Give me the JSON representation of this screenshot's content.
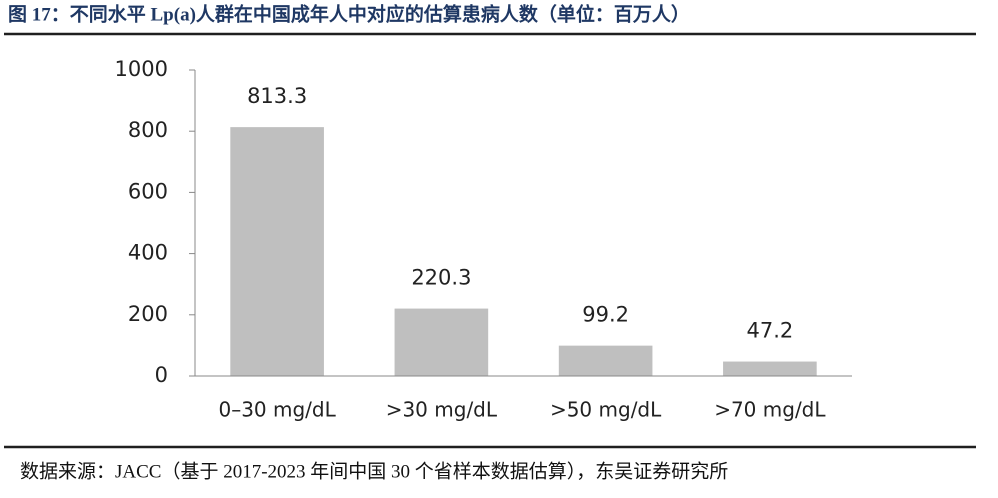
{
  "chart_data": {
    "type": "bar",
    "title": "图 17：不同水平 Lp(a)人群在中国成年人中对应的估算患病人数（单位：百万人）",
    "source": "数据来源：JACC（基于 2017-2023 年间中国 30 个省样本数据估算），东吴证券研究所",
    "categories": [
      "0–30 mg/dL",
      ">30 mg/dL",
      ">50 mg/dL",
      ">70 mg/dL"
    ],
    "values": [
      813.3,
      220.3,
      99.2,
      47.2
    ],
    "color": "#bfbfbf",
    "ylim": [
      0,
      1000
    ],
    "yticks": [
      0,
      200,
      400,
      600,
      800,
      1000
    ],
    "grid": false
  }
}
